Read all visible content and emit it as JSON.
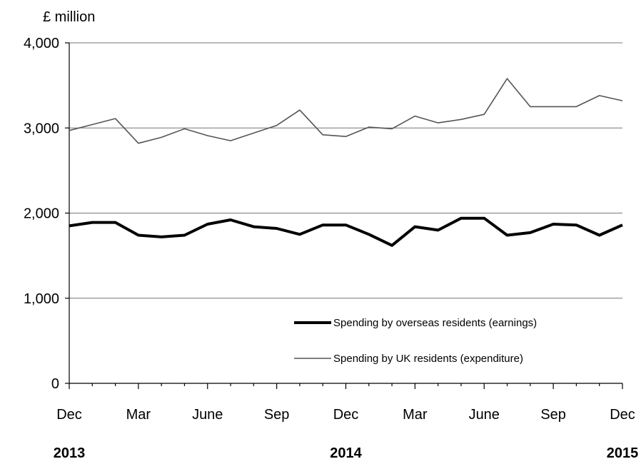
{
  "chart_data": {
    "type": "line",
    "ylabel": "£ million",
    "ylim": [
      0,
      4000
    ],
    "yticks": [
      0,
      1000,
      2000,
      3000,
      4000
    ],
    "ytick_labels": [
      "0",
      "1,000",
      "2,000",
      "3,000",
      "4,000"
    ],
    "x_month_labels": [
      "Dec",
      "Mar",
      "June",
      "Sep",
      "Dec",
      "Mar",
      "June",
      "Sep",
      "Dec"
    ],
    "x_year_labels": [
      "2013",
      "2014",
      "2015"
    ],
    "grid": "horizontal",
    "legend_position": "bottom-right",
    "x": [
      "Dec 2013",
      "Jan 2014",
      "Feb 2014",
      "Mar 2014",
      "Apr 2014",
      "May 2014",
      "Jun 2014",
      "Jul 2014",
      "Aug 2014",
      "Sep 2014",
      "Oct 2014",
      "Nov 2014",
      "Dec 2014",
      "Jan 2015",
      "Feb 2015",
      "Mar 2015",
      "Apr 2015",
      "May 2015",
      "Jun 2015",
      "Jul 2015",
      "Aug 2015",
      "Sep 2015",
      "Oct 2015",
      "Nov 2015",
      "Dec 2015"
    ],
    "series": [
      {
        "name": "Spending by overseas residents (earnings)",
        "color": "#000000",
        "values": [
          1850,
          1890,
          1890,
          1740,
          1720,
          1740,
          1870,
          1920,
          1840,
          1820,
          1750,
          1860,
          1860,
          1750,
          1620,
          1840,
          1800,
          1940,
          1940,
          1740,
          1770,
          1870,
          1860,
          1740,
          1860
        ]
      },
      {
        "name": "Spending by UK residents (expenditure)",
        "color": "#555555",
        "values": [
          2970,
          3040,
          3110,
          2820,
          2890,
          2990,
          2910,
          2850,
          2940,
          3030,
          3210,
          2920,
          2900,
          3010,
          2990,
          3140,
          3060,
          3100,
          3160,
          3580,
          3250,
          3250,
          3250,
          3380,
          3320
        ]
      }
    ]
  }
}
